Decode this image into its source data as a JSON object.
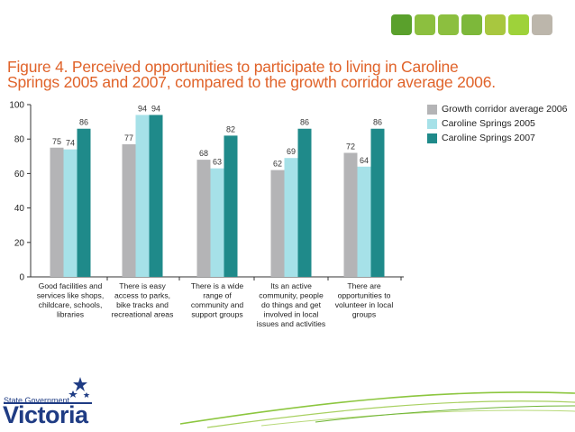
{
  "decor": {
    "squares": [
      "#5aa02c",
      "#8cbf3f",
      "#8cbf3f",
      "#7db83a",
      "#a8c73f",
      "#9ed23a",
      "#bcb6ab"
    ]
  },
  "figure": {
    "title_line1": "Figure 4. Perceived opportunities to participate to living in Caroline",
    "title_line2": "Springs 2005 and 2007, compared to the growth corridor average 2006."
  },
  "chart_data": {
    "type": "bar",
    "title": "Figure 4. Perceived opportunities to participate to living in Caroline Springs 2005 and 2007, compared to the growth corridor average 2006.",
    "xlabel": "",
    "ylabel": "",
    "ylim": [
      0,
      100
    ],
    "yticks": [
      0,
      20,
      40,
      60,
      80,
      100
    ],
    "categories": [
      [
        "Good facilities and",
        "services like shops,",
        "childcare, schools,",
        "libraries"
      ],
      [
        "There is easy",
        "access to parks,",
        "bike tracks and",
        "recreational areas"
      ],
      [
        "There is a wide",
        "range of",
        "community and",
        "support groups"
      ],
      [
        "Its an active",
        "community, people",
        "do things and get",
        "involved in local",
        "issues and activities"
      ],
      [
        "There are",
        "opportunities to",
        "volunteer in local",
        "groups"
      ]
    ],
    "series": [
      {
        "name": "Growth corridor average 2006",
        "color": "#b4b4b6",
        "values": [
          75,
          77,
          68,
          62,
          72
        ]
      },
      {
        "name": "Caroline Springs 2005",
        "color": "#a6e1e8",
        "values": [
          74,
          94,
          63,
          69,
          64
        ]
      },
      {
        "name": "Caroline Springs 2007",
        "color": "#1f8a8a",
        "values": [
          86,
          94,
          82,
          86,
          86
        ]
      }
    ],
    "legend_position": "right"
  },
  "logo": {
    "line1": "State Government",
    "line2": "Victoria"
  }
}
